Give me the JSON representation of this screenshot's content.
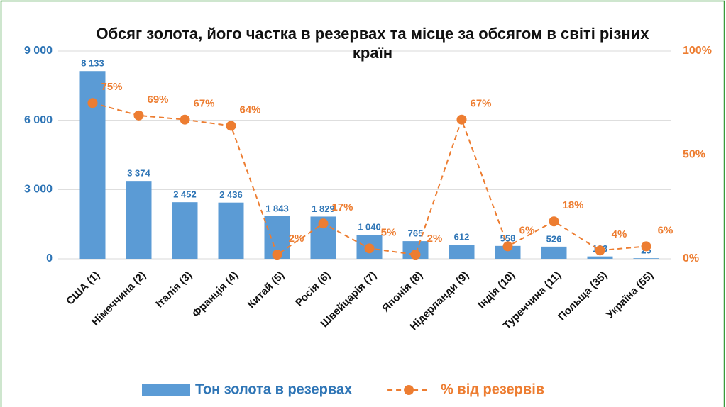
{
  "chart_data": {
    "type": "bar",
    "title": "Обсяг золота, його частка в резервах та місце за обсягом в світі різних країн",
    "categories": [
      "США (1)",
      "Німеччина (2)",
      "Італія (3)",
      "Франція (4)",
      "Китай (5)",
      "Росія (6)",
      "Швейцарія (7)",
      "Японія (8)",
      "Нідерланди (9)",
      "Індія (10)",
      "Туреччина (11)",
      "Польща (35)",
      "Україна (55)"
    ],
    "series": [
      {
        "name": "Тон золота в резервах",
        "type": "bar",
        "color": "#5b9bd5",
        "values": [
          8133,
          3374,
          2452,
          2436,
          1843,
          1829,
          1040,
          765,
          612,
          558,
          526,
          103,
          25
        ],
        "value_labels": [
          "8 133",
          "3 374",
          "2 452",
          "2 436",
          "1 843",
          "1 829",
          "1 040",
          "765",
          "612",
          "558",
          "526",
          "103",
          "25"
        ]
      },
      {
        "name": "% від резервів",
        "type": "line",
        "axis": "y2",
        "dashed": true,
        "color": "#ed7d31",
        "values": [
          75,
          69,
          67,
          64,
          2,
          17,
          5,
          2,
          67,
          6,
          18,
          4,
          6
        ],
        "value_labels": [
          "75%",
          "69%",
          "67%",
          "64%",
          "2%",
          "17%",
          "5%",
          "2%",
          "67%",
          "6%",
          "18%",
          "4%",
          "6%"
        ]
      }
    ],
    "ylim": [
      0,
      9000
    ],
    "yticks": [
      0,
      {
        "value": 3000,
        "label": "3 000"
      },
      {
        "value": 6000,
        "label": "6 000"
      },
      {
        "value": 9000,
        "label": "9 000"
      }
    ],
    "y2lim": [
      0,
      100
    ],
    "y2ticks": [
      {
        "value": 0,
        "label": "0%"
      },
      {
        "value": 50,
        "label": "50%"
      },
      {
        "value": 100,
        "label": "100%"
      }
    ],
    "grid": true,
    "legend": "bottom"
  }
}
